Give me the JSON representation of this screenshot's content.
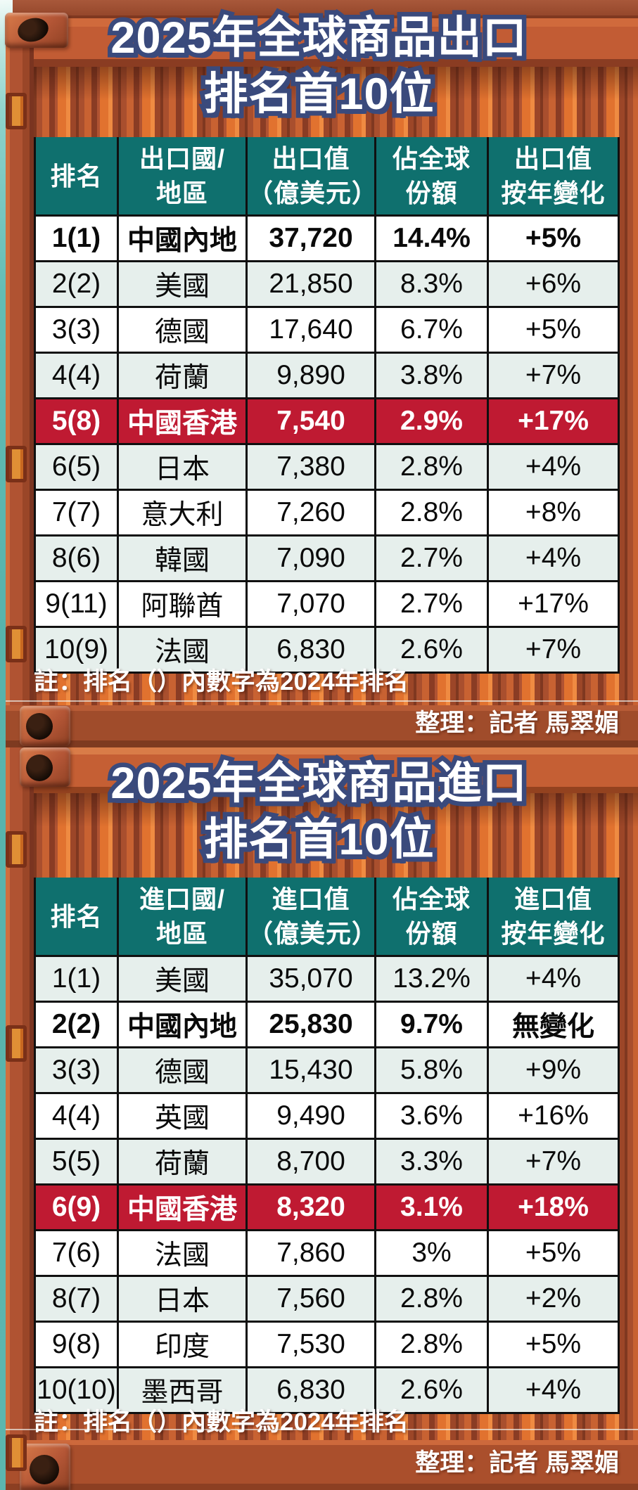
{
  "colors": {
    "header_teal": "#0f706e",
    "row_tint": "#e6efec",
    "highlight_red": "#bf1a32",
    "title_outline_navy": "#3a4a7c",
    "container_orange": "#c25c34",
    "water_teal": "#57b3ab"
  },
  "chart_data": [
    {
      "type": "table",
      "title_lines": [
        "2025年全球商品出口",
        "排名首10位"
      ],
      "columns": [
        [
          "排名",
          ""
        ],
        [
          "出口國/",
          "地區"
        ],
        [
          "出口值",
          "（億美元）"
        ],
        [
          "佔全球",
          "份額"
        ],
        [
          "出口值",
          "按年變化"
        ]
      ],
      "rows": [
        {
          "rank": "1(1)",
          "region": "中國內地",
          "value": "37,720",
          "share": "14.4%",
          "change": "+5%",
          "bg": "white",
          "bold": true
        },
        {
          "rank": "2(2)",
          "region": "美國",
          "value": "21,850",
          "share": "8.3%",
          "change": "+6%",
          "bg": "tint",
          "bold": false
        },
        {
          "rank": "3(3)",
          "region": "德國",
          "value": "17,640",
          "share": "6.7%",
          "change": "+5%",
          "bg": "white",
          "bold": false
        },
        {
          "rank": "4(4)",
          "region": "荷蘭",
          "value": "9,890",
          "share": "3.8%",
          "change": "+7%",
          "bg": "tint",
          "bold": false
        },
        {
          "rank": "5(8)",
          "region": "中國香港",
          "value": "7,540",
          "share": "2.9%",
          "change": "+17%",
          "bg": "red",
          "bold": true
        },
        {
          "rank": "6(5)",
          "region": "日本",
          "value": "7,380",
          "share": "2.8%",
          "change": "+4%",
          "bg": "tint",
          "bold": false
        },
        {
          "rank": "7(7)",
          "region": "意大利",
          "value": "7,260",
          "share": "2.8%",
          "change": "+8%",
          "bg": "white",
          "bold": false
        },
        {
          "rank": "8(6)",
          "region": "韓國",
          "value": "7,090",
          "share": "2.7%",
          "change": "+4%",
          "bg": "tint",
          "bold": false
        },
        {
          "rank": "9(11)",
          "region": "阿聯酋",
          "value": "7,070",
          "share": "2.7%",
          "change": "+17%",
          "bg": "white",
          "bold": false
        },
        {
          "rank": "10(9)",
          "region": "法國",
          "value": "6,830",
          "share": "2.6%",
          "change": "+7%",
          "bg": "tint",
          "bold": false
        }
      ],
      "note": "註：排名（）內數字為2024年排名",
      "credit": "整理：記者 馬翠媚"
    },
    {
      "type": "table",
      "title_lines": [
        "2025年全球商品進口",
        "排名首10位"
      ],
      "columns": [
        [
          "排名",
          ""
        ],
        [
          "進口國/",
          "地區"
        ],
        [
          "進口值",
          "（億美元）"
        ],
        [
          "佔全球",
          "份額"
        ],
        [
          "進口值",
          "按年變化"
        ]
      ],
      "rows": [
        {
          "rank": "1(1)",
          "region": "美國",
          "value": "35,070",
          "share": "13.2%",
          "change": "+4%",
          "bg": "tint",
          "bold": false
        },
        {
          "rank": "2(2)",
          "region": "中國內地",
          "value": "25,830",
          "share": "9.7%",
          "change": "無變化",
          "bg": "white",
          "bold": true
        },
        {
          "rank": "3(3)",
          "region": "德國",
          "value": "15,430",
          "share": "5.8%",
          "change": "+9%",
          "bg": "tint",
          "bold": false
        },
        {
          "rank": "4(4)",
          "region": "英國",
          "value": "9,490",
          "share": "3.6%",
          "change": "+16%",
          "bg": "white",
          "bold": false
        },
        {
          "rank": "5(5)",
          "region": "荷蘭",
          "value": "8,700",
          "share": "3.3%",
          "change": "+7%",
          "bg": "tint",
          "bold": false
        },
        {
          "rank": "6(9)",
          "region": "中國香港",
          "value": "8,320",
          "share": "3.1%",
          "change": "+18%",
          "bg": "red",
          "bold": true
        },
        {
          "rank": "7(6)",
          "region": "法國",
          "value": "7,860",
          "share": "3%",
          "change": "+5%",
          "bg": "white",
          "bold": false
        },
        {
          "rank": "8(7)",
          "region": "日本",
          "value": "7,560",
          "share": "2.8%",
          "change": "+2%",
          "bg": "tint",
          "bold": false
        },
        {
          "rank": "9(8)",
          "region": "印度",
          "value": "7,530",
          "share": "2.8%",
          "change": "+5%",
          "bg": "white",
          "bold": false
        },
        {
          "rank": "10(10)",
          "region": "墨西哥",
          "value": "6,830",
          "share": "2.6%",
          "change": "+4%",
          "bg": "tint",
          "bold": false
        }
      ],
      "note": "註：排名（）內數字為2024年排名",
      "credit": "整理：記者 馬翠媚"
    }
  ]
}
